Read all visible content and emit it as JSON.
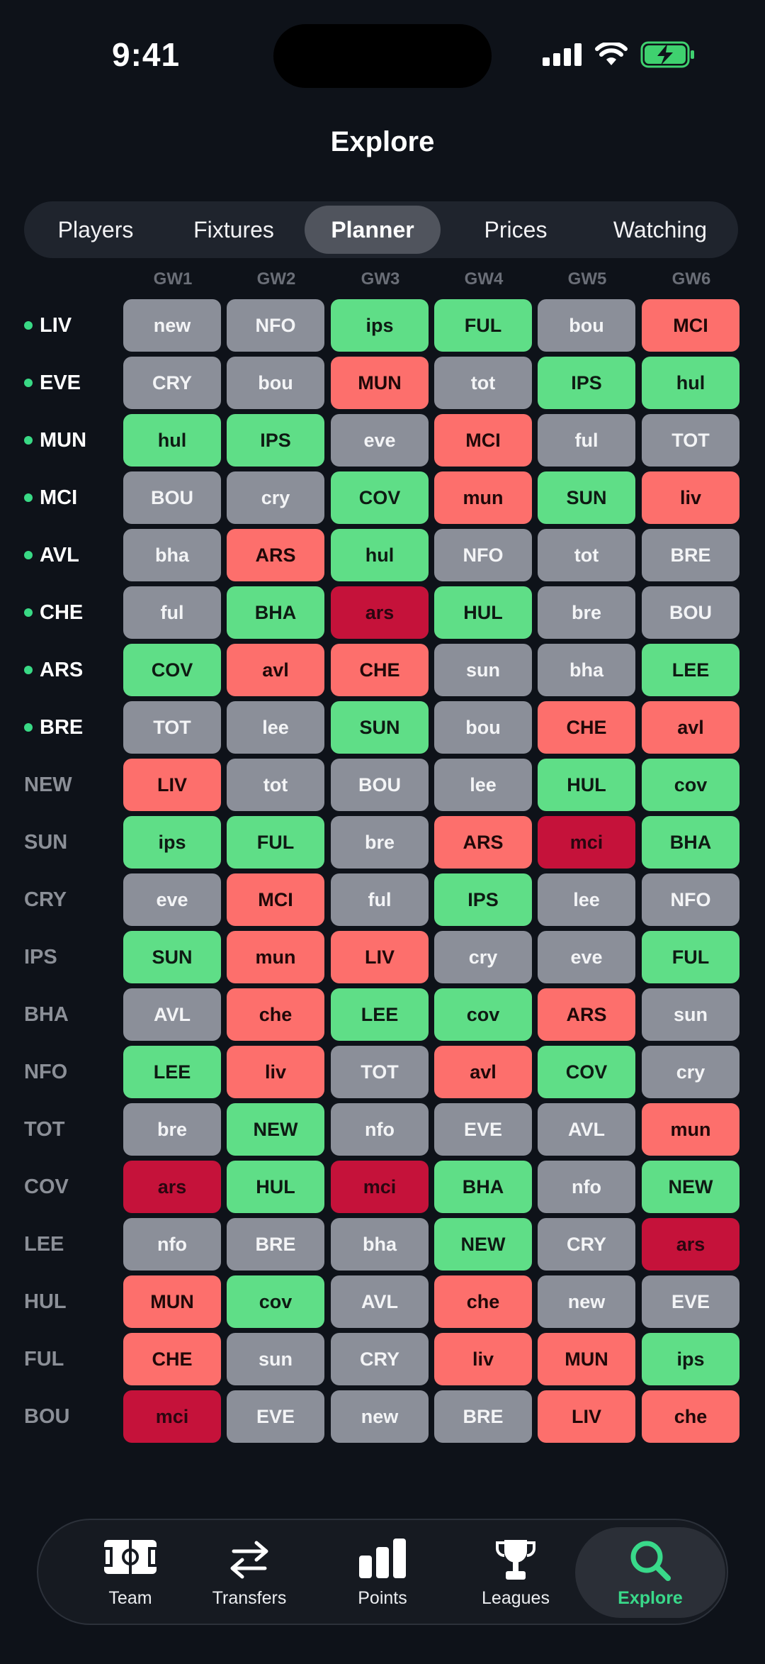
{
  "status": {
    "time": "9:41"
  },
  "title": "Explore",
  "segments": [
    "Players",
    "Fixtures",
    "Planner",
    "Prices",
    "Watching"
  ],
  "active_segment": "Planner",
  "gameweeks": [
    "GW1",
    "GW2",
    "GW3",
    "GW4",
    "GW5",
    "GW6"
  ],
  "rows": [
    {
      "team": "LIV",
      "owned": true,
      "fixtures": [
        {
          "t": "new",
          "d": "grey"
        },
        {
          "t": "NFO",
          "d": "grey"
        },
        {
          "t": "ips",
          "d": "green"
        },
        {
          "t": "FUL",
          "d": "green"
        },
        {
          "t": "bou",
          "d": "grey"
        },
        {
          "t": "MCI",
          "d": "red"
        }
      ]
    },
    {
      "team": "EVE",
      "owned": true,
      "fixtures": [
        {
          "t": "CRY",
          "d": "grey"
        },
        {
          "t": "bou",
          "d": "grey"
        },
        {
          "t": "MUN",
          "d": "red"
        },
        {
          "t": "tot",
          "d": "grey"
        },
        {
          "t": "IPS",
          "d": "green"
        },
        {
          "t": "hul",
          "d": "green"
        }
      ]
    },
    {
      "team": "MUN",
      "owned": true,
      "fixtures": [
        {
          "t": "hul",
          "d": "green"
        },
        {
          "t": "IPS",
          "d": "green"
        },
        {
          "t": "eve",
          "d": "grey"
        },
        {
          "t": "MCI",
          "d": "red"
        },
        {
          "t": "ful",
          "d": "grey"
        },
        {
          "t": "TOT",
          "d": "grey"
        }
      ]
    },
    {
      "team": "MCI",
      "owned": true,
      "fixtures": [
        {
          "t": "BOU",
          "d": "grey"
        },
        {
          "t": "cry",
          "d": "grey"
        },
        {
          "t": "COV",
          "d": "green"
        },
        {
          "t": "mun",
          "d": "red"
        },
        {
          "t": "SUN",
          "d": "green"
        },
        {
          "t": "liv",
          "d": "red"
        }
      ]
    },
    {
      "team": "AVL",
      "owned": true,
      "fixtures": [
        {
          "t": "bha",
          "d": "grey"
        },
        {
          "t": "ARS",
          "d": "red"
        },
        {
          "t": "hul",
          "d": "green"
        },
        {
          "t": "NFO",
          "d": "grey"
        },
        {
          "t": "tot",
          "d": "grey"
        },
        {
          "t": "BRE",
          "d": "grey"
        }
      ]
    },
    {
      "team": "CHE",
      "owned": true,
      "fixtures": [
        {
          "t": "ful",
          "d": "grey"
        },
        {
          "t": "BHA",
          "d": "green"
        },
        {
          "t": "ars",
          "d": "darkred"
        },
        {
          "t": "HUL",
          "d": "green"
        },
        {
          "t": "bre",
          "d": "grey"
        },
        {
          "t": "BOU",
          "d": "grey"
        }
      ]
    },
    {
      "team": "ARS",
      "owned": true,
      "fixtures": [
        {
          "t": "COV",
          "d": "green"
        },
        {
          "t": "avl",
          "d": "red"
        },
        {
          "t": "CHE",
          "d": "red"
        },
        {
          "t": "sun",
          "d": "grey"
        },
        {
          "t": "bha",
          "d": "grey"
        },
        {
          "t": "LEE",
          "d": "green"
        }
      ]
    },
    {
      "team": "BRE",
      "owned": true,
      "fixtures": [
        {
          "t": "TOT",
          "d": "grey"
        },
        {
          "t": "lee",
          "d": "grey"
        },
        {
          "t": "SUN",
          "d": "green"
        },
        {
          "t": "bou",
          "d": "grey"
        },
        {
          "t": "CHE",
          "d": "red"
        },
        {
          "t": "avl",
          "d": "red"
        }
      ]
    },
    {
      "team": "NEW",
      "owned": false,
      "fixtures": [
        {
          "t": "LIV",
          "d": "red"
        },
        {
          "t": "tot",
          "d": "grey"
        },
        {
          "t": "BOU",
          "d": "grey"
        },
        {
          "t": "lee",
          "d": "grey"
        },
        {
          "t": "HUL",
          "d": "green"
        },
        {
          "t": "cov",
          "d": "green"
        }
      ]
    },
    {
      "team": "SUN",
      "owned": false,
      "fixtures": [
        {
          "t": "ips",
          "d": "green"
        },
        {
          "t": "FUL",
          "d": "green"
        },
        {
          "t": "bre",
          "d": "grey"
        },
        {
          "t": "ARS",
          "d": "red"
        },
        {
          "t": "mci",
          "d": "darkred"
        },
        {
          "t": "BHA",
          "d": "green"
        }
      ]
    },
    {
      "team": "CRY",
      "owned": false,
      "fixtures": [
        {
          "t": "eve",
          "d": "grey"
        },
        {
          "t": "MCI",
          "d": "red"
        },
        {
          "t": "ful",
          "d": "grey"
        },
        {
          "t": "IPS",
          "d": "green"
        },
        {
          "t": "lee",
          "d": "grey"
        },
        {
          "t": "NFO",
          "d": "grey"
        }
      ]
    },
    {
      "team": "IPS",
      "owned": false,
      "fixtures": [
        {
          "t": "SUN",
          "d": "green"
        },
        {
          "t": "mun",
          "d": "red"
        },
        {
          "t": "LIV",
          "d": "red"
        },
        {
          "t": "cry",
          "d": "grey"
        },
        {
          "t": "eve",
          "d": "grey"
        },
        {
          "t": "FUL",
          "d": "green"
        }
      ]
    },
    {
      "team": "BHA",
      "owned": false,
      "fixtures": [
        {
          "t": "AVL",
          "d": "grey"
        },
        {
          "t": "che",
          "d": "red"
        },
        {
          "t": "LEE",
          "d": "green"
        },
        {
          "t": "cov",
          "d": "green"
        },
        {
          "t": "ARS",
          "d": "red"
        },
        {
          "t": "sun",
          "d": "grey"
        }
      ]
    },
    {
      "team": "NFO",
      "owned": false,
      "fixtures": [
        {
          "t": "LEE",
          "d": "green"
        },
        {
          "t": "liv",
          "d": "red"
        },
        {
          "t": "TOT",
          "d": "grey"
        },
        {
          "t": "avl",
          "d": "red"
        },
        {
          "t": "COV",
          "d": "green"
        },
        {
          "t": "cry",
          "d": "grey"
        }
      ]
    },
    {
      "team": "TOT",
      "owned": false,
      "fixtures": [
        {
          "t": "bre",
          "d": "grey"
        },
        {
          "t": "NEW",
          "d": "green"
        },
        {
          "t": "nfo",
          "d": "grey"
        },
        {
          "t": "EVE",
          "d": "grey"
        },
        {
          "t": "AVL",
          "d": "grey"
        },
        {
          "t": "mun",
          "d": "red"
        }
      ]
    },
    {
      "team": "COV",
      "owned": false,
      "fixtures": [
        {
          "t": "ars",
          "d": "darkred"
        },
        {
          "t": "HUL",
          "d": "green"
        },
        {
          "t": "mci",
          "d": "darkred"
        },
        {
          "t": "BHA",
          "d": "green"
        },
        {
          "t": "nfo",
          "d": "grey"
        },
        {
          "t": "NEW",
          "d": "green"
        }
      ]
    },
    {
      "team": "LEE",
      "owned": false,
      "fixtures": [
        {
          "t": "nfo",
          "d": "grey"
        },
        {
          "t": "BRE",
          "d": "grey"
        },
        {
          "t": "bha",
          "d": "grey"
        },
        {
          "t": "NEW",
          "d": "green"
        },
        {
          "t": "CRY",
          "d": "grey"
        },
        {
          "t": "ars",
          "d": "darkred"
        }
      ]
    },
    {
      "team": "HUL",
      "owned": false,
      "fixtures": [
        {
          "t": "MUN",
          "d": "red"
        },
        {
          "t": "cov",
          "d": "green"
        },
        {
          "t": "AVL",
          "d": "grey"
        },
        {
          "t": "che",
          "d": "red"
        },
        {
          "t": "new",
          "d": "grey"
        },
        {
          "t": "EVE",
          "d": "grey"
        }
      ]
    },
    {
      "team": "FUL",
      "owned": false,
      "fixtures": [
        {
          "t": "CHE",
          "d": "red"
        },
        {
          "t": "sun",
          "d": "grey"
        },
        {
          "t": "CRY",
          "d": "grey"
        },
        {
          "t": "liv",
          "d": "red"
        },
        {
          "t": "MUN",
          "d": "red"
        },
        {
          "t": "ips",
          "d": "green"
        }
      ]
    },
    {
      "team": "BOU",
      "owned": false,
      "fixtures": [
        {
          "t": "mci",
          "d": "darkred"
        },
        {
          "t": "EVE",
          "d": "grey"
        },
        {
          "t": "new",
          "d": "grey"
        },
        {
          "t": "BRE",
          "d": "grey"
        },
        {
          "t": "LIV",
          "d": "red"
        },
        {
          "t": "che",
          "d": "red"
        }
      ]
    }
  ],
  "tabbar": [
    {
      "label": "Team",
      "icon": "pitch-icon"
    },
    {
      "label": "Transfers",
      "icon": "transfer-arrows-icon"
    },
    {
      "label": "Points",
      "icon": "bar-chart-icon"
    },
    {
      "label": "Leagues",
      "icon": "trophy-icon"
    },
    {
      "label": "Explore",
      "icon": "search-icon",
      "active": true
    }
  ],
  "colors": {
    "background": "#0e1219",
    "easy": "#5fde87",
    "neutral": "#8b8f99",
    "hard": "#fd6f6c",
    "very_hard": "#c5123a",
    "accent": "#39d98a"
  }
}
